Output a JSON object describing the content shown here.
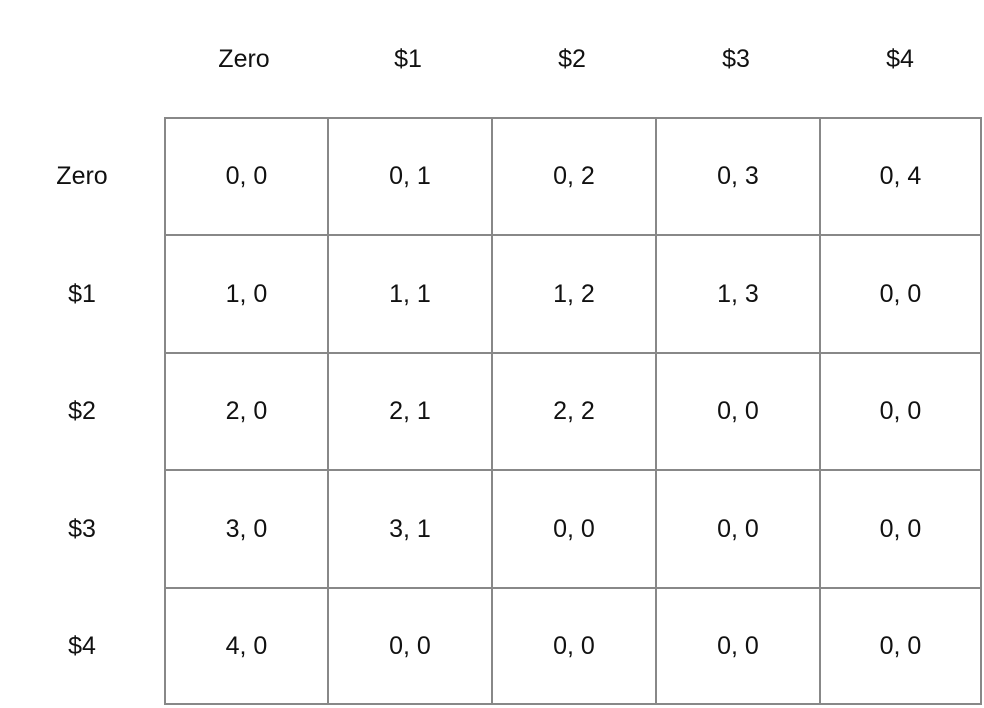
{
  "column_headers": [
    "Zero",
    "$1",
    "$2",
    "$3",
    "$4"
  ],
  "row_headers": [
    "Zero",
    "$1",
    "$2",
    "$3",
    "$4"
  ],
  "cells": [
    [
      "0, 0",
      "0, 1",
      "0, 2",
      "0, 3",
      "0, 4"
    ],
    [
      "1, 0",
      "1, 1",
      "1, 2",
      "1, 3",
      "0, 0"
    ],
    [
      "2, 0",
      "2, 1",
      "2, 2",
      "0, 0",
      "0, 0"
    ],
    [
      "3, 0",
      "3, 1",
      "0, 0",
      "0, 0",
      "0, 0"
    ],
    [
      "4, 0",
      "0, 0",
      "0, 0",
      "0, 0",
      "0, 0"
    ]
  ],
  "colors": {
    "grid_line": "#888888",
    "text": "#111111",
    "background": "#ffffff"
  }
}
